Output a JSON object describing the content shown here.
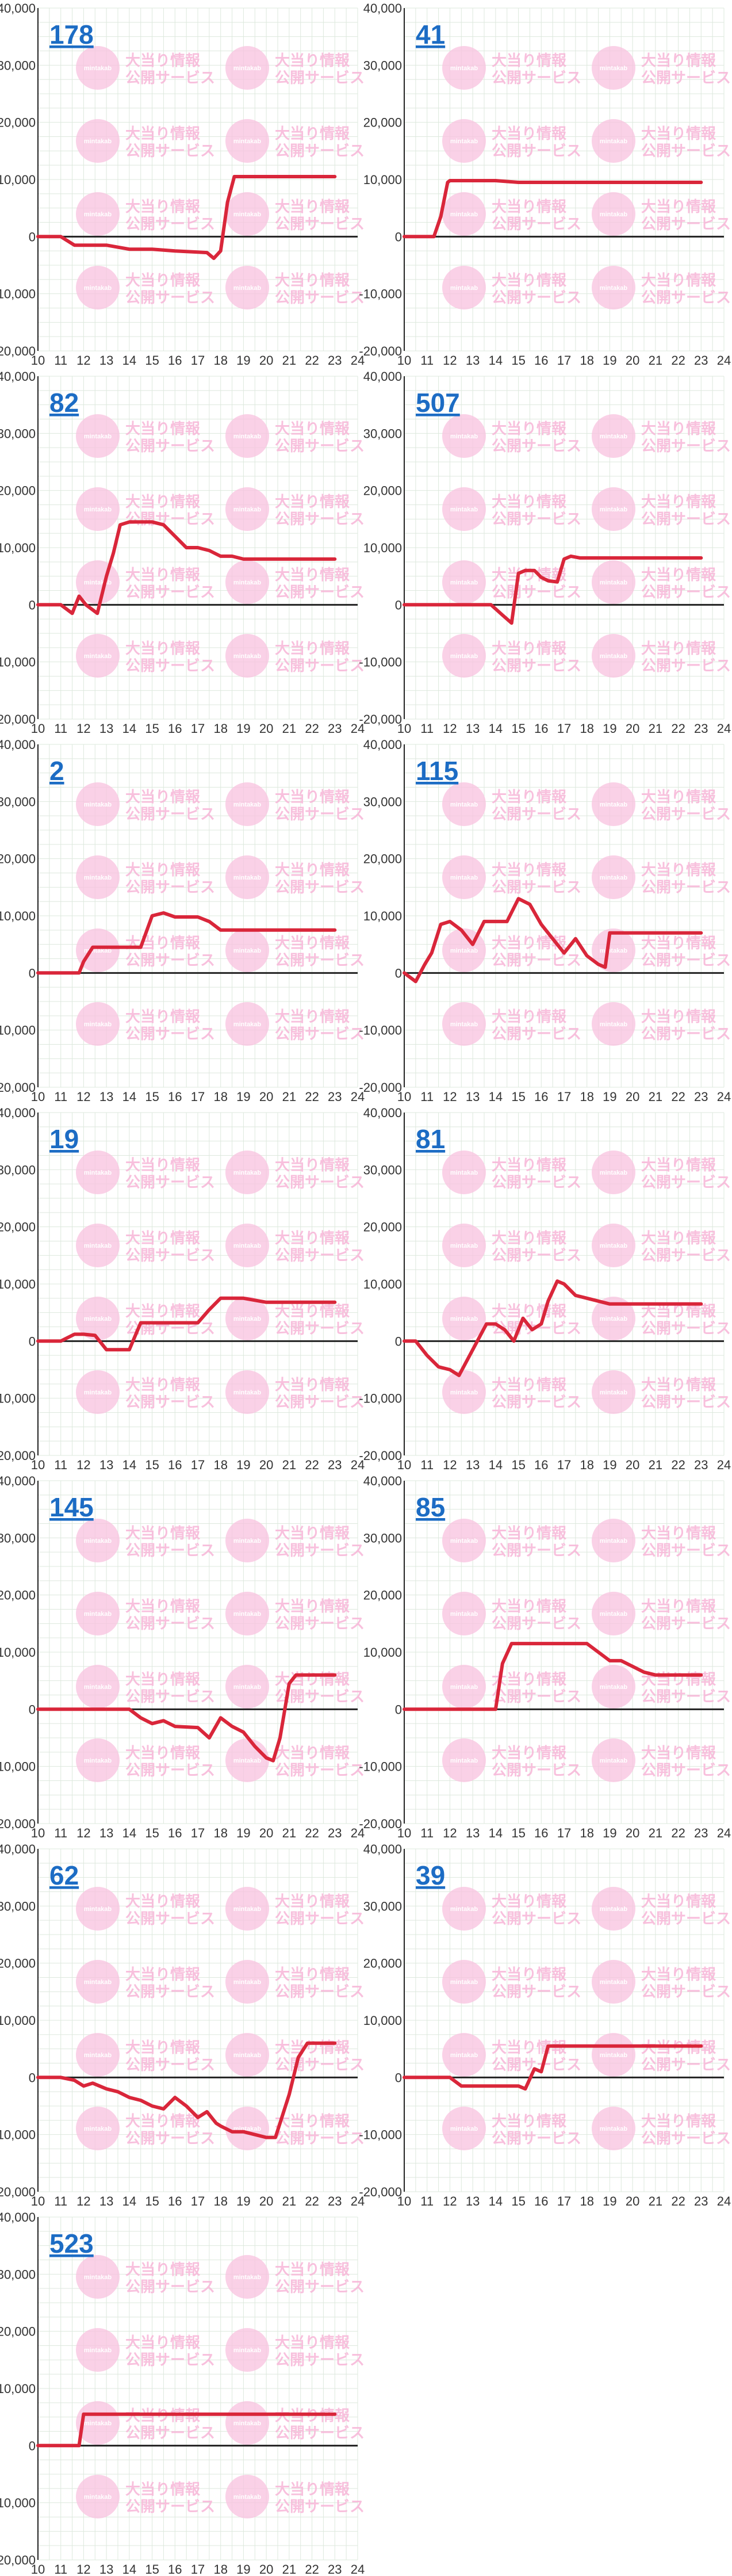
{
  "watermark": {
    "line1": "大当り情報",
    "line2": "公開サービス",
    "badge": "mintakab",
    "color": "#f8c2df"
  },
  "colors": {
    "line": "#d9263a",
    "zero": "#222222",
    "grid": "#dde8dd",
    "link": "#1c6cc4"
  },
  "chart_data": [
    {
      "type": "line",
      "label": "178",
      "xlim": [
        10,
        24
      ],
      "ylim": [
        -20000,
        40000
      ],
      "x_ticks": [
        "10",
        "11",
        "12",
        "13",
        "14",
        "15",
        "16",
        "17",
        "18",
        "19",
        "20",
        "21",
        "22",
        "23",
        "24"
      ],
      "y_ticks": [
        "-20,000",
        "-10,000",
        "0",
        "10,000",
        "20,000",
        "30,000",
        "40,000"
      ],
      "x": [
        10,
        11,
        11.6,
        12,
        13,
        14,
        15,
        16,
        17,
        17.4,
        17.7,
        18,
        18.3,
        18.6,
        19,
        23
      ],
      "y": [
        0,
        0,
        -1500,
        -1500,
        -1500,
        -2200,
        -2200,
        -2500,
        -2700,
        -2800,
        -3800,
        -2500,
        6000,
        10500,
        10500,
        10500
      ]
    },
    {
      "type": "line",
      "label": "41",
      "xlim": [
        10,
        24
      ],
      "ylim": [
        -20000,
        40000
      ],
      "x_ticks": [
        "10",
        "11",
        "12",
        "13",
        "14",
        "15",
        "16",
        "17",
        "18",
        "19",
        "20",
        "21",
        "22",
        "23",
        "24"
      ],
      "y_ticks": [
        "-20,000",
        "-10,000",
        "0",
        "10,000",
        "20,000",
        "30,000",
        "40,000"
      ],
      "x": [
        10,
        11.3,
        11.6,
        11.9,
        12,
        13,
        14,
        15,
        23
      ],
      "y": [
        0,
        0,
        3500,
        9500,
        9800,
        9800,
        9800,
        9500,
        9500
      ]
    },
    {
      "type": "line",
      "label": "82",
      "xlim": [
        10,
        24
      ],
      "ylim": [
        -20000,
        40000
      ],
      "x_ticks": [
        "10",
        "11",
        "12",
        "13",
        "14",
        "15",
        "16",
        "17",
        "18",
        "19",
        "20",
        "21",
        "22",
        "23",
        "24"
      ],
      "y_ticks": [
        "-20,000",
        "-10,000",
        "0",
        "10,000",
        "20,000",
        "30,000",
        "40,000"
      ],
      "x": [
        10,
        11,
        11.5,
        11.8,
        12.1,
        12.6,
        13,
        13.3,
        13.6,
        14,
        15,
        15.5,
        16,
        16.5,
        17,
        17.5,
        18,
        18.5,
        19,
        23
      ],
      "y": [
        0,
        0,
        -1500,
        1500,
        0,
        -1500,
        5000,
        9000,
        14000,
        14500,
        14500,
        14000,
        12000,
        10000,
        10000,
        9500,
        8500,
        8500,
        8000,
        8000
      ]
    },
    {
      "type": "line",
      "label": "507",
      "xlim": [
        10,
        24
      ],
      "ylim": [
        -20000,
        40000
      ],
      "x_ticks": [
        "10",
        "11",
        "12",
        "13",
        "14",
        "15",
        "16",
        "17",
        "18",
        "19",
        "20",
        "21",
        "22",
        "23",
        "24"
      ],
      "y_ticks": [
        "-20,000",
        "-10,000",
        "0",
        "10,000",
        "20,000",
        "30,000",
        "40,000"
      ],
      "x": [
        10,
        11,
        12,
        13,
        13.8,
        14.3,
        14.7,
        15,
        15.3,
        15.7,
        16,
        16.3,
        16.7,
        17,
        17.3,
        17.7,
        18,
        23
      ],
      "y": [
        0,
        0,
        0,
        0,
        0,
        -1800,
        -3200,
        5500,
        6000,
        6000,
        4800,
        4200,
        4000,
        8000,
        8500,
        8200,
        8200,
        8200
      ]
    },
    {
      "type": "line",
      "label": "2",
      "xlim": [
        10,
        24
      ],
      "ylim": [
        -20000,
        40000
      ],
      "x_ticks": [
        "10",
        "11",
        "12",
        "13",
        "14",
        "15",
        "16",
        "17",
        "18",
        "19",
        "20",
        "21",
        "22",
        "23",
        "24"
      ],
      "y_ticks": [
        "-20,000",
        "-10,000",
        "0",
        "10,000",
        "20,000",
        "30,000",
        "40,000"
      ],
      "x": [
        10,
        11,
        11.8,
        12,
        12.4,
        13,
        14,
        14.5,
        15,
        15.5,
        16,
        17,
        17.5,
        18,
        19,
        23
      ],
      "y": [
        0,
        0,
        0,
        2000,
        4500,
        4500,
        4500,
        4500,
        10000,
        10500,
        9800,
        9800,
        9000,
        7500,
        7500,
        7500
      ]
    },
    {
      "type": "line",
      "label": "115",
      "xlim": [
        10,
        24
      ],
      "ylim": [
        -20000,
        40000
      ],
      "x_ticks": [
        "10",
        "11",
        "12",
        "13",
        "14",
        "15",
        "16",
        "17",
        "18",
        "19",
        "20",
        "21",
        "22",
        "23",
        "24"
      ],
      "y_ticks": [
        "-20,000",
        "-10,000",
        "0",
        "10,000",
        "20,000",
        "30,000",
        "40,000"
      ],
      "x": [
        10,
        10.5,
        10.9,
        11.2,
        11.6,
        12,
        12.5,
        13,
        13.5,
        14,
        14.5,
        15,
        15.5,
        16,
        16.5,
        17,
        17.5,
        18,
        18.5,
        18.8,
        19,
        19.5,
        23
      ],
      "y": [
        0,
        -1500,
        1500,
        3500,
        8500,
        9000,
        7500,
        5000,
        9000,
        9000,
        9000,
        13000,
        12000,
        8500,
        6000,
        3500,
        6000,
        3000,
        1500,
        1000,
        7000,
        7000,
        7000
      ]
    },
    {
      "type": "line",
      "label": "19",
      "xlim": [
        10,
        24
      ],
      "ylim": [
        -20000,
        40000
      ],
      "x_ticks": [
        "10",
        "11",
        "12",
        "13",
        "14",
        "15",
        "16",
        "17",
        "18",
        "19",
        "20",
        "21",
        "22",
        "23",
        "24"
      ],
      "y_ticks": [
        "-20,000",
        "-10,000",
        "0",
        "10,000",
        "20,000",
        "30,000",
        "40,000"
      ],
      "x": [
        10,
        11,
        11.6,
        12,
        12.5,
        13,
        13.5,
        14,
        14.5,
        15,
        16,
        16.5,
        17,
        17.5,
        18,
        19,
        20,
        21,
        23
      ],
      "y": [
        0,
        0,
        1200,
        1200,
        1000,
        -1500,
        -1500,
        -1500,
        3200,
        3200,
        3200,
        3200,
        3200,
        5500,
        7500,
        7500,
        6800,
        6800,
        6800
      ]
    },
    {
      "type": "line",
      "label": "81",
      "xlim": [
        10,
        24
      ],
      "ylim": [
        -20000,
        40000
      ],
      "x_ticks": [
        "10",
        "11",
        "12",
        "13",
        "14",
        "15",
        "16",
        "17",
        "18",
        "19",
        "20",
        "21",
        "22",
        "23",
        "24"
      ],
      "y_ticks": [
        "-20,000",
        "-10,000",
        "0",
        "10,000",
        "20,000",
        "30,000",
        "40,000"
      ],
      "x": [
        10,
        10.5,
        11,
        11.5,
        12,
        12.4,
        12.8,
        13.2,
        13.6,
        14,
        14.4,
        14.8,
        15.2,
        15.6,
        16,
        16.3,
        16.7,
        17,
        17.5,
        18,
        19,
        23
      ],
      "y": [
        0,
        0,
        -2500,
        -4500,
        -5000,
        -6000,
        -3000,
        0,
        3000,
        3000,
        2000,
        0,
        4000,
        2000,
        3000,
        7000,
        10500,
        10000,
        8000,
        7500,
        6500,
        6500
      ]
    },
    {
      "type": "line",
      "label": "145",
      "xlim": [
        10,
        24
      ],
      "ylim": [
        -20000,
        40000
      ],
      "x_ticks": [
        "10",
        "11",
        "12",
        "13",
        "14",
        "15",
        "16",
        "17",
        "18",
        "19",
        "20",
        "21",
        "22",
        "23",
        "24"
      ],
      "y_ticks": [
        "-20,000",
        "-10,000",
        "0",
        "10,000",
        "20,000",
        "30,000",
        "40,000"
      ],
      "x": [
        10,
        11,
        12,
        13,
        14,
        14.5,
        15,
        15.5,
        16,
        17,
        17.5,
        18,
        18.5,
        19,
        19.5,
        20,
        20.3,
        20.6,
        21,
        21.3,
        23
      ],
      "y": [
        0,
        0,
        0,
        0,
        0,
        -1500,
        -2500,
        -2000,
        -3000,
        -3200,
        -5000,
        -1500,
        -3000,
        -4000,
        -6500,
        -8500,
        -9000,
        -5000,
        4500,
        6000,
        6000
      ]
    },
    {
      "type": "line",
      "label": "85",
      "xlim": [
        10,
        24
      ],
      "ylim": [
        -20000,
        40000
      ],
      "x_ticks": [
        "10",
        "11",
        "12",
        "13",
        "14",
        "15",
        "16",
        "17",
        "18",
        "19",
        "20",
        "21",
        "22",
        "23",
        "24"
      ],
      "y_ticks": [
        "-20,000",
        "-10,000",
        "0",
        "10,000",
        "20,000",
        "30,000",
        "40,000"
      ],
      "x": [
        10,
        11,
        12,
        13,
        14,
        14.3,
        14.7,
        15,
        16,
        17,
        18,
        18.5,
        19,
        19.5,
        20,
        20.5,
        21,
        23
      ],
      "y": [
        0,
        0,
        0,
        0,
        0,
        8000,
        11500,
        11500,
        11500,
        11500,
        11500,
        10000,
        8500,
        8500,
        7500,
        6500,
        6000,
        6000
      ]
    },
    {
      "type": "line",
      "label": "62",
      "xlim": [
        10,
        24
      ],
      "ylim": [
        -20000,
        40000
      ],
      "x_ticks": [
        "10",
        "11",
        "12",
        "13",
        "14",
        "15",
        "16",
        "17",
        "18",
        "19",
        "20",
        "21",
        "22",
        "23",
        "24"
      ],
      "y_ticks": [
        "-20,000",
        "-10,000",
        "0",
        "10,000",
        "20,000",
        "30,000",
        "40,000"
      ],
      "x": [
        10,
        11,
        11.6,
        12,
        12.4,
        13,
        13.5,
        14,
        14.5,
        15,
        15.5,
        16,
        16.5,
        17,
        17.4,
        17.8,
        18,
        18.5,
        19,
        19.5,
        20,
        20.4,
        21,
        21.4,
        21.8,
        23
      ],
      "y": [
        0,
        0,
        -500,
        -1500,
        -1000,
        -2000,
        -2500,
        -3500,
        -4000,
        -5000,
        -5500,
        -3500,
        -5000,
        -7000,
        -6000,
        -8000,
        -8500,
        -9500,
        -9500,
        -10000,
        -10500,
        -10500,
        -3000,
        3500,
        6000,
        6000
      ]
    },
    {
      "type": "line",
      "label": "39",
      "xlim": [
        10,
        24
      ],
      "ylim": [
        -20000,
        40000
      ],
      "x_ticks": [
        "10",
        "11",
        "12",
        "13",
        "14",
        "15",
        "16",
        "17",
        "18",
        "19",
        "20",
        "21",
        "22",
        "23",
        "24"
      ],
      "y_ticks": [
        "-20,000",
        "-10,000",
        "0",
        "10,000",
        "20,000",
        "30,000",
        "40,000"
      ],
      "x": [
        10,
        11,
        12,
        12.5,
        13,
        14,
        15,
        15.3,
        15.7,
        16,
        16.3,
        16.6,
        17,
        23
      ],
      "y": [
        0,
        0,
        0,
        -1500,
        -1500,
        -1500,
        -1500,
        -2000,
        1500,
        1000,
        5500,
        5500,
        5500,
        5500
      ]
    },
    {
      "type": "line",
      "label": "523",
      "xlim": [
        10,
        24
      ],
      "ylim": [
        -20000,
        40000
      ],
      "x_ticks": [
        "10",
        "11",
        "12",
        "13",
        "14",
        "15",
        "16",
        "17",
        "18",
        "19",
        "20",
        "21",
        "22",
        "23",
        "24"
      ],
      "y_ticks": [
        "-20,000",
        "-10,000",
        "0",
        "10,000",
        "20,000",
        "30,000",
        "40,000"
      ],
      "x": [
        10,
        11,
        11.8,
        12,
        13,
        23
      ],
      "y": [
        0,
        0,
        0,
        5500,
        5500,
        5500
      ]
    }
  ]
}
